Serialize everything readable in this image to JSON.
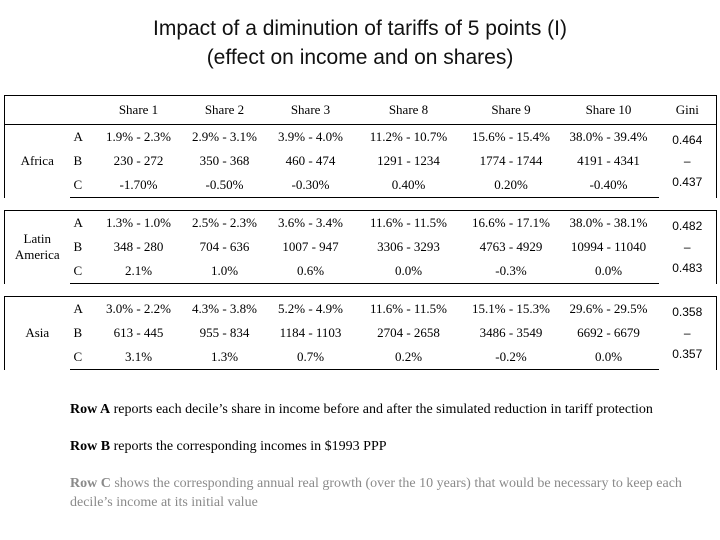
{
  "title": {
    "line1": "Impact of a diminution of tariffs of 5 points (I)",
    "line2": "(effect on income and on shares)"
  },
  "table": {
    "headers": [
      "Share 1",
      "Share 2",
      "Share 3",
      "Share 8",
      "Share 9",
      "Share 10",
      "Gini"
    ],
    "regions": [
      {
        "name": "Africa",
        "rows": [
          {
            "code": "A",
            "cells": [
              "1.9% - 2.3%",
              "2.9% - 3.1%",
              "3.9% - 4.0%",
              "11.2% - 10.7%",
              "15.6% - 15.4%",
              "38.0% - 39.4%"
            ]
          },
          {
            "code": "B",
            "cells": [
              "230 - 272",
              "350 - 368",
              "460 - 474",
              "1291 - 1234",
              "1774 - 1744",
              "4191 - 4341"
            ]
          },
          {
            "code": "C",
            "cells": [
              "-1.70%",
              "-0.50%",
              "-0.30%",
              "0.40%",
              "0.20%",
              "-0.40%"
            ]
          }
        ],
        "gini": [
          "0.464",
          "–",
          "0.437"
        ]
      },
      {
        "name": "Latin America",
        "rows": [
          {
            "code": "A",
            "cells": [
              "1.3% - 1.0%",
              "2.5% - 2.3%",
              "3.6% - 3.4%",
              "11.6% - 11.5%",
              "16.6% - 17.1%",
              "38.0% - 38.1%"
            ]
          },
          {
            "code": "B",
            "cells": [
              "348 - 280",
              "704 - 636",
              "1007 - 947",
              "3306 - 3293",
              "4763 - 4929",
              "10994 - 11040"
            ]
          },
          {
            "code": "C",
            "cells": [
              "2.1%",
              "1.0%",
              "0.6%",
              "0.0%",
              "-0.3%",
              "0.0%"
            ]
          }
        ],
        "gini": [
          "0.482",
          "–",
          "0.483"
        ]
      },
      {
        "name": "Asia",
        "rows": [
          {
            "code": "A",
            "cells": [
              "3.0% - 2.2%",
              "4.3% - 3.8%",
              "5.2% - 4.9%",
              "11.6% - 11.5%",
              "15.1% - 15.3%",
              "29.6% - 29.5%"
            ]
          },
          {
            "code": "B",
            "cells": [
              "613 - 445",
              "955 - 834",
              "1184 - 1103",
              "2704 - 2658",
              "3486 - 3549",
              "6692 - 6679"
            ]
          },
          {
            "code": "C",
            "cells": [
              "3.1%",
              "1.3%",
              "0.7%",
              "0.2%",
              "-0.2%",
              "0.0%"
            ]
          }
        ],
        "gini": [
          "0.358",
          "–",
          "0.357"
        ]
      }
    ]
  },
  "notes": {
    "a_label": "Row A",
    "a_text": " reports each decile’s share in income before and after the simulated reduction in tariff protection",
    "b_label": "Row B",
    "b_text": " reports the corresponding incomes in $1993 PPP",
    "c_label": "Row C",
    "c_text": " shows the corresponding annual real growth (over the 10 years) that would be necessary to keep each decile’s income at its initial value"
  }
}
